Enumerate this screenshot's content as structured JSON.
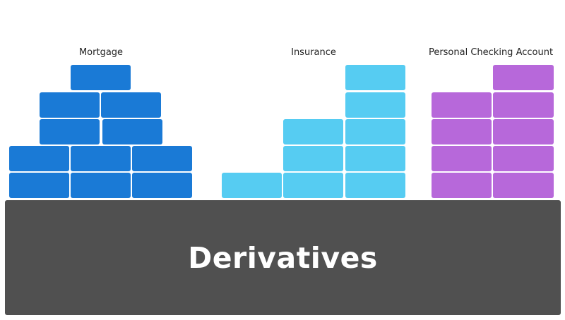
{
  "groups": [
    {
      "label": "Mortgage",
      "color": "#1a7ad6"
    },
    {
      "label": "Insurance",
      "color": "#56ccf2"
    },
    {
      "label": "Personal Checking Account",
      "color": "#b768da"
    }
  ],
  "base": {
    "title": "Derivatives",
    "color": "#505050"
  }
}
